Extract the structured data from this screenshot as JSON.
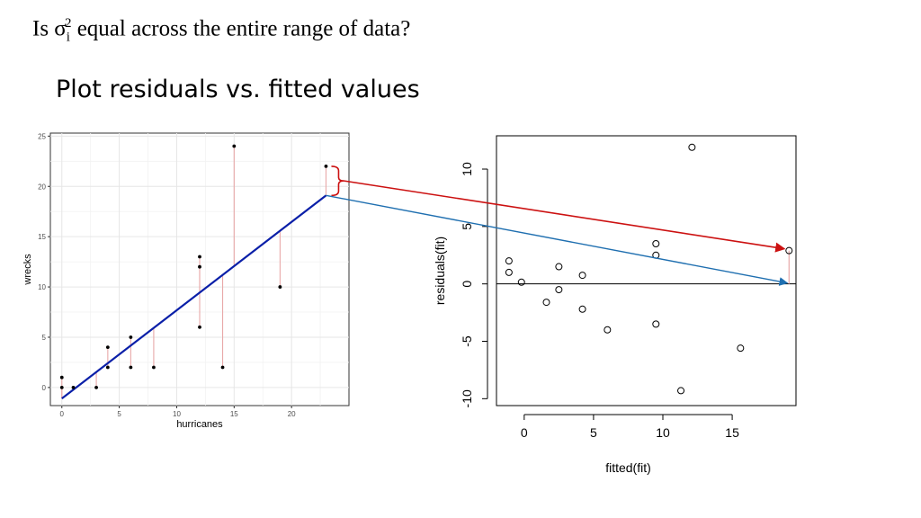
{
  "slide": {
    "heading_pre": "Is σ",
    "heading_sub": "i",
    "heading_sup": "2",
    "heading_post": " equal across the entire range of data?",
    "subheading": "Plot residuals vs. fitted values"
  },
  "colors": {
    "regression_line": "#0a1fa8",
    "segments": "#e8a8a8",
    "red_arrow": "#cc1111",
    "blue_arrow": "#1f6fb0",
    "points": "#000000"
  },
  "chart_data": [
    {
      "type": "scatter",
      "xlabel": "hurricanes",
      "ylabel": "wrecks",
      "xlim": [
        -1,
        25
      ],
      "ylim": [
        -1.8,
        25.3
      ],
      "xticks": [
        0,
        5,
        10,
        15,
        20
      ],
      "yticks": [
        0,
        5,
        10,
        15,
        20,
        25
      ],
      "grid": true,
      "fit_line": {
        "x": [
          0,
          23
        ],
        "y": [
          -1.1,
          19.1
        ]
      },
      "points": [
        {
          "x": 0,
          "y": 0
        },
        {
          "x": 0,
          "y": 1
        },
        {
          "x": 1,
          "y": 0
        },
        {
          "x": 3,
          "y": 0
        },
        {
          "x": 4,
          "y": 2
        },
        {
          "x": 4,
          "y": 4
        },
        {
          "x": 6,
          "y": 2
        },
        {
          "x": 6,
          "y": 5
        },
        {
          "x": 8,
          "y": 2
        },
        {
          "x": 12,
          "y": 6
        },
        {
          "x": 12,
          "y": 12
        },
        {
          "x": 12,
          "y": 13
        },
        {
          "x": 14,
          "y": 2
        },
        {
          "x": 15,
          "y": 24
        },
        {
          "x": 19,
          "y": 10
        },
        {
          "x": 23,
          "y": 22
        }
      ]
    },
    {
      "type": "scatter",
      "xlabel": "fitted(fit)",
      "ylabel": "residuals(fit)",
      "xlim": [
        -2,
        19.6
      ],
      "ylim": [
        -10.6,
        12.9
      ],
      "xticks": [
        0,
        5,
        10,
        15
      ],
      "yticks": [
        -10,
        -5,
        0,
        5,
        10
      ],
      "hline": 0,
      "points": [
        {
          "x": -1.1,
          "y": 2.0
        },
        {
          "x": -1.1,
          "y": 1.0
        },
        {
          "x": -0.2,
          "y": 0.15
        },
        {
          "x": 1.6,
          "y": -1.6
        },
        {
          "x": 2.5,
          "y": 1.5
        },
        {
          "x": 2.5,
          "y": -0.5
        },
        {
          "x": 4.2,
          "y": 0.75
        },
        {
          "x": 4.2,
          "y": -2.2
        },
        {
          "x": 6.0,
          "y": -4.0
        },
        {
          "x": 9.5,
          "y": 3.5
        },
        {
          "x": 9.5,
          "y": 2.5
        },
        {
          "x": 9.5,
          "y": -3.5
        },
        {
          "x": 11.3,
          "y": -9.3
        },
        {
          "x": 12.1,
          "y": 11.9
        },
        {
          "x": 15.6,
          "y": -5.6
        },
        {
          "x": 19.1,
          "y": 2.9
        }
      ]
    }
  ]
}
